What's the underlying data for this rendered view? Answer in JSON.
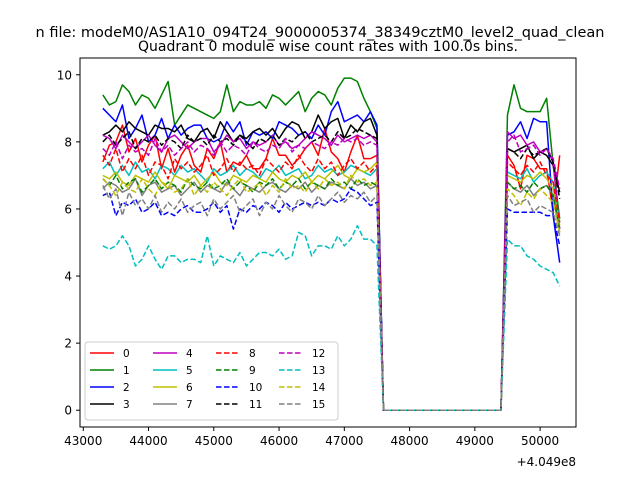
{
  "figure": {
    "suptitle": "n file: modeM0/AS1A10_094T24_9000005374_38349cztM0_level2_quad_clean",
    "title": "Quadrant 0 module wise count rates with 100.0s bins.",
    "offset_label": "+4.049e8"
  },
  "chart_data": {
    "type": "line",
    "title": "Quadrant 0 module wise count rates with 100.0s bins.",
    "xlabel": "",
    "ylabel": "",
    "x_offset": 404900000,
    "xlim": [
      42950,
      50550
    ],
    "ylim": [
      -0.5,
      10.5
    ],
    "xticks": [
      43000,
      44000,
      45000,
      46000,
      47000,
      48000,
      49000,
      50000
    ],
    "yticks": [
      0,
      2,
      4,
      6,
      8,
      10
    ],
    "grid": false,
    "legend_position": "lower-left",
    "legend_columns": 4,
    "x_start": 43300,
    "x_step": 100,
    "gap_start_index": 43,
    "gap_end_index": 61,
    "series": [
      {
        "name": "0",
        "color": "#ff0000",
        "dash": "solid",
        "values": [
          7.4,
          7.9,
          8.0,
          8.5,
          7.7,
          8.1,
          7.4,
          7.9,
          8.2,
          7.2,
          7.8,
          7.1,
          7.6,
          7.9,
          7.3,
          7.1,
          7.8,
          7.5,
          8.0,
          7.1,
          7.4,
          7.3,
          7.6,
          7.2,
          7.2,
          7.5,
          8.1,
          7.6,
          7.6,
          7.3,
          7.5,
          7.8,
          8.0,
          7.6,
          8.4,
          7.7,
          7.5,
          7.1,
          7.7,
          8.2,
          7.5,
          7.5,
          7.6,
          0,
          0,
          0,
          0,
          0,
          0,
          0,
          0,
          0,
          0,
          0,
          0,
          0,
          0,
          0,
          0,
          0,
          0,
          0,
          7.6,
          7.3,
          6.6,
          7.6,
          7.5,
          7.2,
          7.2,
          5.9,
          7.6
        ]
      },
      {
        "name": "1",
        "color": "#008000",
        "dash": "solid",
        "values": [
          9.4,
          9.1,
          9.2,
          9.7,
          9.5,
          9.1,
          9.4,
          9.3,
          9.0,
          9.4,
          9.8,
          8.5,
          8.8,
          9.1,
          9.0,
          8.9,
          8.8,
          8.7,
          8.9,
          9.7,
          8.9,
          9.2,
          9.1,
          9.1,
          9.2,
          9.0,
          9.4,
          9.3,
          9.1,
          9.3,
          9.5,
          8.9,
          9.3,
          9.5,
          9.4,
          9.1,
          9.6,
          9.9,
          9.9,
          9.8,
          9.3,
          8.9,
          8.4,
          0,
          0,
          0,
          0,
          0,
          0,
          0,
          0,
          0,
          0,
          0,
          0,
          0,
          0,
          0,
          0,
          0,
          0,
          0,
          8.8,
          9.7,
          9.0,
          8.9,
          8.9,
          8.9,
          9.3,
          7.3,
          5.7
        ]
      },
      {
        "name": "2",
        "color": "#0000ff",
        "dash": "solid",
        "values": [
          9.0,
          8.8,
          8.6,
          9.1,
          8.1,
          8.4,
          8.8,
          8.0,
          8.2,
          8.7,
          8.1,
          8.5,
          8.2,
          8.4,
          8.5,
          8.5,
          8.1,
          8.0,
          8.1,
          8.6,
          8.3,
          8.6,
          7.9,
          8.3,
          8.2,
          8.3,
          8.1,
          8.6,
          8.5,
          8.4,
          8.2,
          8.3,
          8.1,
          8.5,
          8.2,
          8.9,
          9.2,
          8.6,
          8.7,
          8.8,
          8.6,
          8.9,
          8.5,
          0,
          0,
          0,
          0,
          0,
          0,
          0,
          0,
          0,
          0,
          0,
          0,
          0,
          0,
          0,
          0,
          0,
          0,
          0,
          8.2,
          8.3,
          8.6,
          8.1,
          8.7,
          8.6,
          8.6,
          5.8,
          4.4
        ]
      },
      {
        "name": "3",
        "color": "#000000",
        "dash": "solid",
        "values": [
          8.2,
          8.3,
          8.5,
          8.3,
          8.6,
          8.4,
          8.3,
          8.2,
          8.5,
          8.4,
          8.4,
          8.3,
          8.5,
          8.1,
          8.0,
          8.3,
          8.4,
          8.1,
          8.6,
          8.3,
          8.0,
          8.2,
          8.1,
          8.3,
          8.4,
          8.2,
          8.4,
          8.1,
          8.4,
          8.6,
          8.5,
          8.1,
          8.3,
          8.8,
          8.4,
          8.6,
          8.7,
          8.1,
          8.5,
          8.3,
          8.6,
          8.7,
          8.2,
          0,
          0,
          0,
          0,
          0,
          0,
          0,
          0,
          0,
          0,
          0,
          0,
          0,
          0,
          0,
          0,
          0,
          0,
          0,
          7.8,
          7.7,
          7.8,
          7.9,
          7.5,
          7.7,
          7.6,
          7.3,
          6.5
        ]
      },
      {
        "name": "4",
        "color": "#bf00bf",
        "dash": "solid",
        "values": [
          8.2,
          8.1,
          7.8,
          8.2,
          8.0,
          7.8,
          8.0,
          8.2,
          7.9,
          7.7,
          8.1,
          8.2,
          8.0,
          7.8,
          8.0,
          8.1,
          8.1,
          7.7,
          7.9,
          8.2,
          8.0,
          8.1,
          7.8,
          8.0,
          7.9,
          8.0,
          8.2,
          7.9,
          8.0,
          7.8,
          7.9,
          8.1,
          8.3,
          8.2,
          8.1,
          7.9,
          8.2,
          8.0,
          8.1,
          8.2,
          8.1,
          8.2,
          8.0,
          0,
          0,
          0,
          0,
          0,
          0,
          0,
          0,
          0,
          0,
          0,
          0,
          0,
          0,
          0,
          0,
          0,
          0,
          0,
          8.3,
          8.1,
          8.2,
          7.9,
          8.0,
          7.7,
          7.8,
          7.4,
          5.4
        ]
      },
      {
        "name": "5",
        "color": "#00bfbf",
        "dash": "solid",
        "values": [
          7.2,
          7.4,
          7.0,
          7.3,
          7.0,
          7.4,
          7.1,
          7.2,
          6.9,
          7.3,
          7.2,
          7.0,
          7.3,
          7.1,
          7.2,
          7.0,
          6.8,
          7.2,
          7.0,
          7.1,
          7.3,
          7.0,
          7.2,
          7.1,
          6.9,
          7.2,
          7.1,
          7.3,
          7.0,
          7.1,
          7.2,
          6.9,
          7.0,
          7.3,
          7.1,
          7.2,
          7.0,
          7.1,
          7.3,
          7.2,
          7.1,
          7.0,
          7.2,
          0,
          0,
          0,
          0,
          0,
          0,
          0,
          0,
          0,
          0,
          0,
          0,
          0,
          0,
          0,
          0,
          0,
          0,
          0,
          7.1,
          7.0,
          6.9,
          7.2,
          6.8,
          7.0,
          7.1,
          6.8,
          5.6
        ]
      },
      {
        "name": "6",
        "color": "#bfbf00",
        "dash": "solid",
        "values": [
          7.0,
          6.9,
          7.1,
          6.8,
          6.7,
          7.0,
          6.9,
          6.8,
          7.1,
          6.8,
          6.6,
          7.0,
          6.9,
          6.8,
          7.0,
          6.7,
          6.9,
          7.1,
          6.8,
          6.7,
          7.0,
          6.9,
          6.8,
          7.0,
          6.9,
          6.8,
          7.1,
          6.9,
          6.8,
          7.0,
          6.9,
          7.1,
          6.8,
          7.0,
          6.9,
          7.1,
          7.3,
          7.0,
          6.9,
          7.2,
          7.1,
          7.2,
          7.4,
          0,
          0,
          0,
          0,
          0,
          0,
          0,
          0,
          0,
          0,
          0,
          0,
          0,
          0,
          0,
          0,
          0,
          0,
          0,
          7.0,
          6.9,
          6.8,
          7.0,
          6.9,
          7.1,
          6.9,
          6.6,
          5.5
        ]
      },
      {
        "name": "7",
        "color": "#808080",
        "dash": "solid",
        "values": [
          6.6,
          6.8,
          6.7,
          6.5,
          6.6,
          6.9,
          6.4,
          6.7,
          6.8,
          6.5,
          6.6,
          6.7,
          6.4,
          6.6,
          6.8,
          6.5,
          6.7,
          6.6,
          6.5,
          6.8,
          6.6,
          6.4,
          6.7,
          6.6,
          6.5,
          6.7,
          6.8,
          6.6,
          6.5,
          6.7,
          6.6,
          6.8,
          6.5,
          6.7,
          6.6,
          6.8,
          6.7,
          6.6,
          6.9,
          6.7,
          6.8,
          6.6,
          6.7,
          0,
          0,
          0,
          0,
          0,
          0,
          0,
          0,
          0,
          0,
          0,
          0,
          0,
          0,
          0,
          0,
          0,
          0,
          0,
          6.8,
          6.6,
          6.5,
          6.7,
          6.4,
          6.6,
          6.7,
          6.4,
          5.3
        ]
      },
      {
        "name": "8",
        "color": "#ff0000",
        "dash": "dashed",
        "values": [
          7.6,
          7.3,
          7.8,
          7.1,
          7.5,
          7.2,
          7.6,
          7.0,
          7.4,
          7.3,
          6.9,
          7.5,
          7.2,
          7.4,
          7.1,
          7.3,
          7.6,
          7.0,
          7.2,
          7.5,
          7.1,
          7.4,
          7.2,
          7.3,
          7.0,
          7.5,
          7.3,
          7.1,
          7.4,
          7.2,
          7.6,
          7.3,
          7.1,
          7.5,
          7.2,
          7.4,
          7.0,
          7.3,
          7.5,
          7.2,
          7.4,
          7.1,
          7.3,
          0,
          0,
          0,
          0,
          0,
          0,
          0,
          0,
          0,
          0,
          0,
          0,
          0,
          0,
          0,
          0,
          0,
          0,
          0,
          7.4,
          7.2,
          7.0,
          7.3,
          7.1,
          7.4,
          7.0,
          6.8,
          5.6
        ]
      },
      {
        "name": "9",
        "color": "#008000",
        "dash": "dashed",
        "values": [
          6.9,
          6.7,
          7.0,
          6.6,
          6.8,
          6.9,
          6.5,
          6.7,
          6.9,
          6.6,
          6.8,
          6.7,
          6.5,
          6.9,
          6.7,
          6.6,
          6.8,
          6.6,
          6.7,
          6.9,
          6.6,
          6.8,
          6.7,
          6.5,
          6.8,
          6.7,
          6.9,
          6.6,
          6.8,
          6.7,
          6.9,
          6.6,
          6.8,
          6.7,
          6.6,
          6.9,
          6.7,
          6.8,
          6.6,
          6.9,
          6.7,
          6.8,
          6.7,
          0,
          0,
          0,
          0,
          0,
          0,
          0,
          0,
          0,
          0,
          0,
          0,
          0,
          0,
          0,
          0,
          0,
          0,
          0,
          6.8,
          6.6,
          6.7,
          6.5,
          6.8,
          6.6,
          6.7,
          6.4,
          5.4
        ]
      },
      {
        "name": "10",
        "color": "#0000ff",
        "dash": "dashed",
        "values": [
          6.4,
          6.5,
          5.8,
          6.2,
          6.1,
          6.3,
          5.9,
          6.0,
          6.2,
          5.8,
          5.9,
          5.8,
          6.0,
          6.1,
          5.9,
          5.9,
          6.0,
          6.2,
          5.9,
          6.1,
          5.4,
          6.0,
          5.9,
          6.1,
          6.0,
          6.2,
          6.1,
          5.9,
          6.2,
          6.0,
          6.1,
          6.2,
          6.1,
          6.2,
          6.1,
          6.3,
          6.2,
          6.3,
          6.6,
          6.5,
          6.3,
          6.1,
          6.2,
          0,
          0,
          0,
          0,
          0,
          0,
          0,
          0,
          0,
          0,
          0,
          0,
          0,
          0,
          0,
          0,
          0,
          0,
          0,
          6.0,
          5.9,
          5.9,
          5.9,
          5.9,
          5.9,
          5.8,
          5.8,
          4.9
        ]
      },
      {
        "name": "11",
        "color": "#000000",
        "dash": "dashed",
        "values": [
          8.0,
          8.2,
          7.9,
          8.1,
          8.3,
          7.8,
          8.1,
          8.0,
          8.2,
          7.9,
          8.1,
          8.0,
          7.8,
          8.2,
          8.0,
          8.1,
          7.9,
          8.2,
          8.0,
          8.1,
          7.9,
          8.2,
          8.0,
          7.8,
          8.1,
          8.0,
          8.2,
          7.9,
          8.1,
          8.0,
          8.2,
          8.3,
          8.0,
          8.1,
          8.2,
          8.0,
          8.3,
          8.1,
          8.2,
          8.4,
          8.3,
          8.2,
          8.1,
          0,
          0,
          0,
          0,
          0,
          0,
          0,
          0,
          0,
          0,
          0,
          0,
          0,
          0,
          0,
          0,
          0,
          0,
          0,
          7.8,
          7.7,
          7.5,
          7.8,
          7.6,
          7.7,
          7.8,
          7.4,
          6.3
        ]
      },
      {
        "name": "12",
        "color": "#bf00bf",
        "dash": "dashed",
        "values": [
          7.8,
          7.6,
          8.0,
          7.5,
          7.9,
          7.7,
          7.8,
          7.6,
          8.1,
          7.7,
          7.9,
          7.6,
          7.8,
          8.0,
          7.7,
          7.9,
          7.8,
          7.6,
          8.0,
          7.7,
          7.9,
          7.8,
          7.6,
          8.0,
          7.8,
          7.7,
          7.9,
          7.8,
          8.1,
          7.7,
          7.9,
          7.8,
          8.0,
          7.9,
          7.8,
          8.0,
          7.9,
          8.1,
          8.0,
          8.1,
          7.9,
          8.0,
          7.9,
          0,
          0,
          0,
          0,
          0,
          0,
          0,
          0,
          0,
          0,
          0,
          0,
          0,
          0,
          0,
          0,
          0,
          0,
          0,
          8.0,
          8.2,
          7.7,
          7.8,
          7.9,
          7.6,
          7.8,
          7.5,
          6.6
        ]
      },
      {
        "name": "13",
        "color": "#00bfbf",
        "dash": "dashed",
        "values": [
          4.9,
          4.8,
          4.9,
          5.2,
          4.9,
          4.3,
          4.5,
          4.9,
          4.5,
          4.2,
          4.6,
          4.6,
          4.4,
          4.5,
          4.5,
          4.4,
          5.2,
          4.3,
          4.6,
          4.5,
          4.4,
          4.7,
          4.3,
          4.5,
          4.7,
          4.7,
          4.6,
          4.8,
          4.5,
          4.6,
          5.3,
          5.2,
          4.6,
          4.9,
          4.9,
          4.8,
          5.2,
          4.9,
          5.1,
          5.5,
          5.1,
          5.1,
          4.9,
          0,
          0,
          0,
          0,
          0,
          0,
          0,
          0,
          0,
          0,
          0,
          0,
          0,
          0,
          0,
          0,
          0,
          0,
          0,
          5.1,
          4.9,
          4.9,
          4.6,
          4.5,
          4.3,
          4.2,
          4.1,
          3.7
        ]
      },
      {
        "name": "14",
        "color": "#bfbf00",
        "dash": "dashed",
        "values": [
          6.9,
          6.7,
          6.4,
          6.8,
          6.6,
          6.5,
          6.9,
          6.6,
          6.4,
          6.8,
          6.7,
          6.5,
          6.6,
          6.9,
          6.4,
          6.7,
          6.5,
          6.8,
          6.6,
          6.4,
          6.7,
          6.9,
          6.5,
          6.6,
          6.8,
          6.4,
          6.7,
          6.5,
          6.9,
          6.6,
          6.7,
          6.5,
          6.8,
          6.6,
          6.9,
          6.7,
          6.8,
          6.6,
          7.0,
          6.8,
          6.9,
          6.7,
          6.8,
          0,
          0,
          0,
          0,
          0,
          0,
          0,
          0,
          0,
          0,
          0,
          0,
          0,
          0,
          0,
          0,
          0,
          0,
          0,
          6.6,
          6.4,
          6.1,
          6.5,
          6.3,
          6.6,
          6.4,
          6.2,
          5.3
        ]
      },
      {
        "name": "15",
        "color": "#808080",
        "dash": "dashed",
        "values": [
          6.7,
          6.3,
          6.6,
          5.8,
          6.5,
          6.1,
          6.3,
          6.0,
          6.4,
          5.9,
          6.2,
          6.0,
          6.3,
          5.9,
          6.1,
          6.2,
          5.8,
          6.3,
          6.0,
          6.2,
          6.4,
          5.9,
          6.1,
          6.3,
          5.8,
          6.2,
          6.0,
          6.4,
          6.1,
          5.9,
          6.3,
          6.2,
          6.0,
          6.4,
          6.1,
          6.3,
          6.5,
          6.2,
          6.4,
          6.3,
          6.5,
          6.2,
          6.4,
          0,
          0,
          0,
          0,
          0,
          0,
          0,
          0,
          0,
          0,
          0,
          0,
          0,
          0,
          0,
          0,
          0,
          0,
          0,
          6.4,
          6.1,
          6.2,
          6.3,
          5.9,
          6.1,
          6.0,
          5.9,
          5.2
        ]
      }
    ]
  }
}
